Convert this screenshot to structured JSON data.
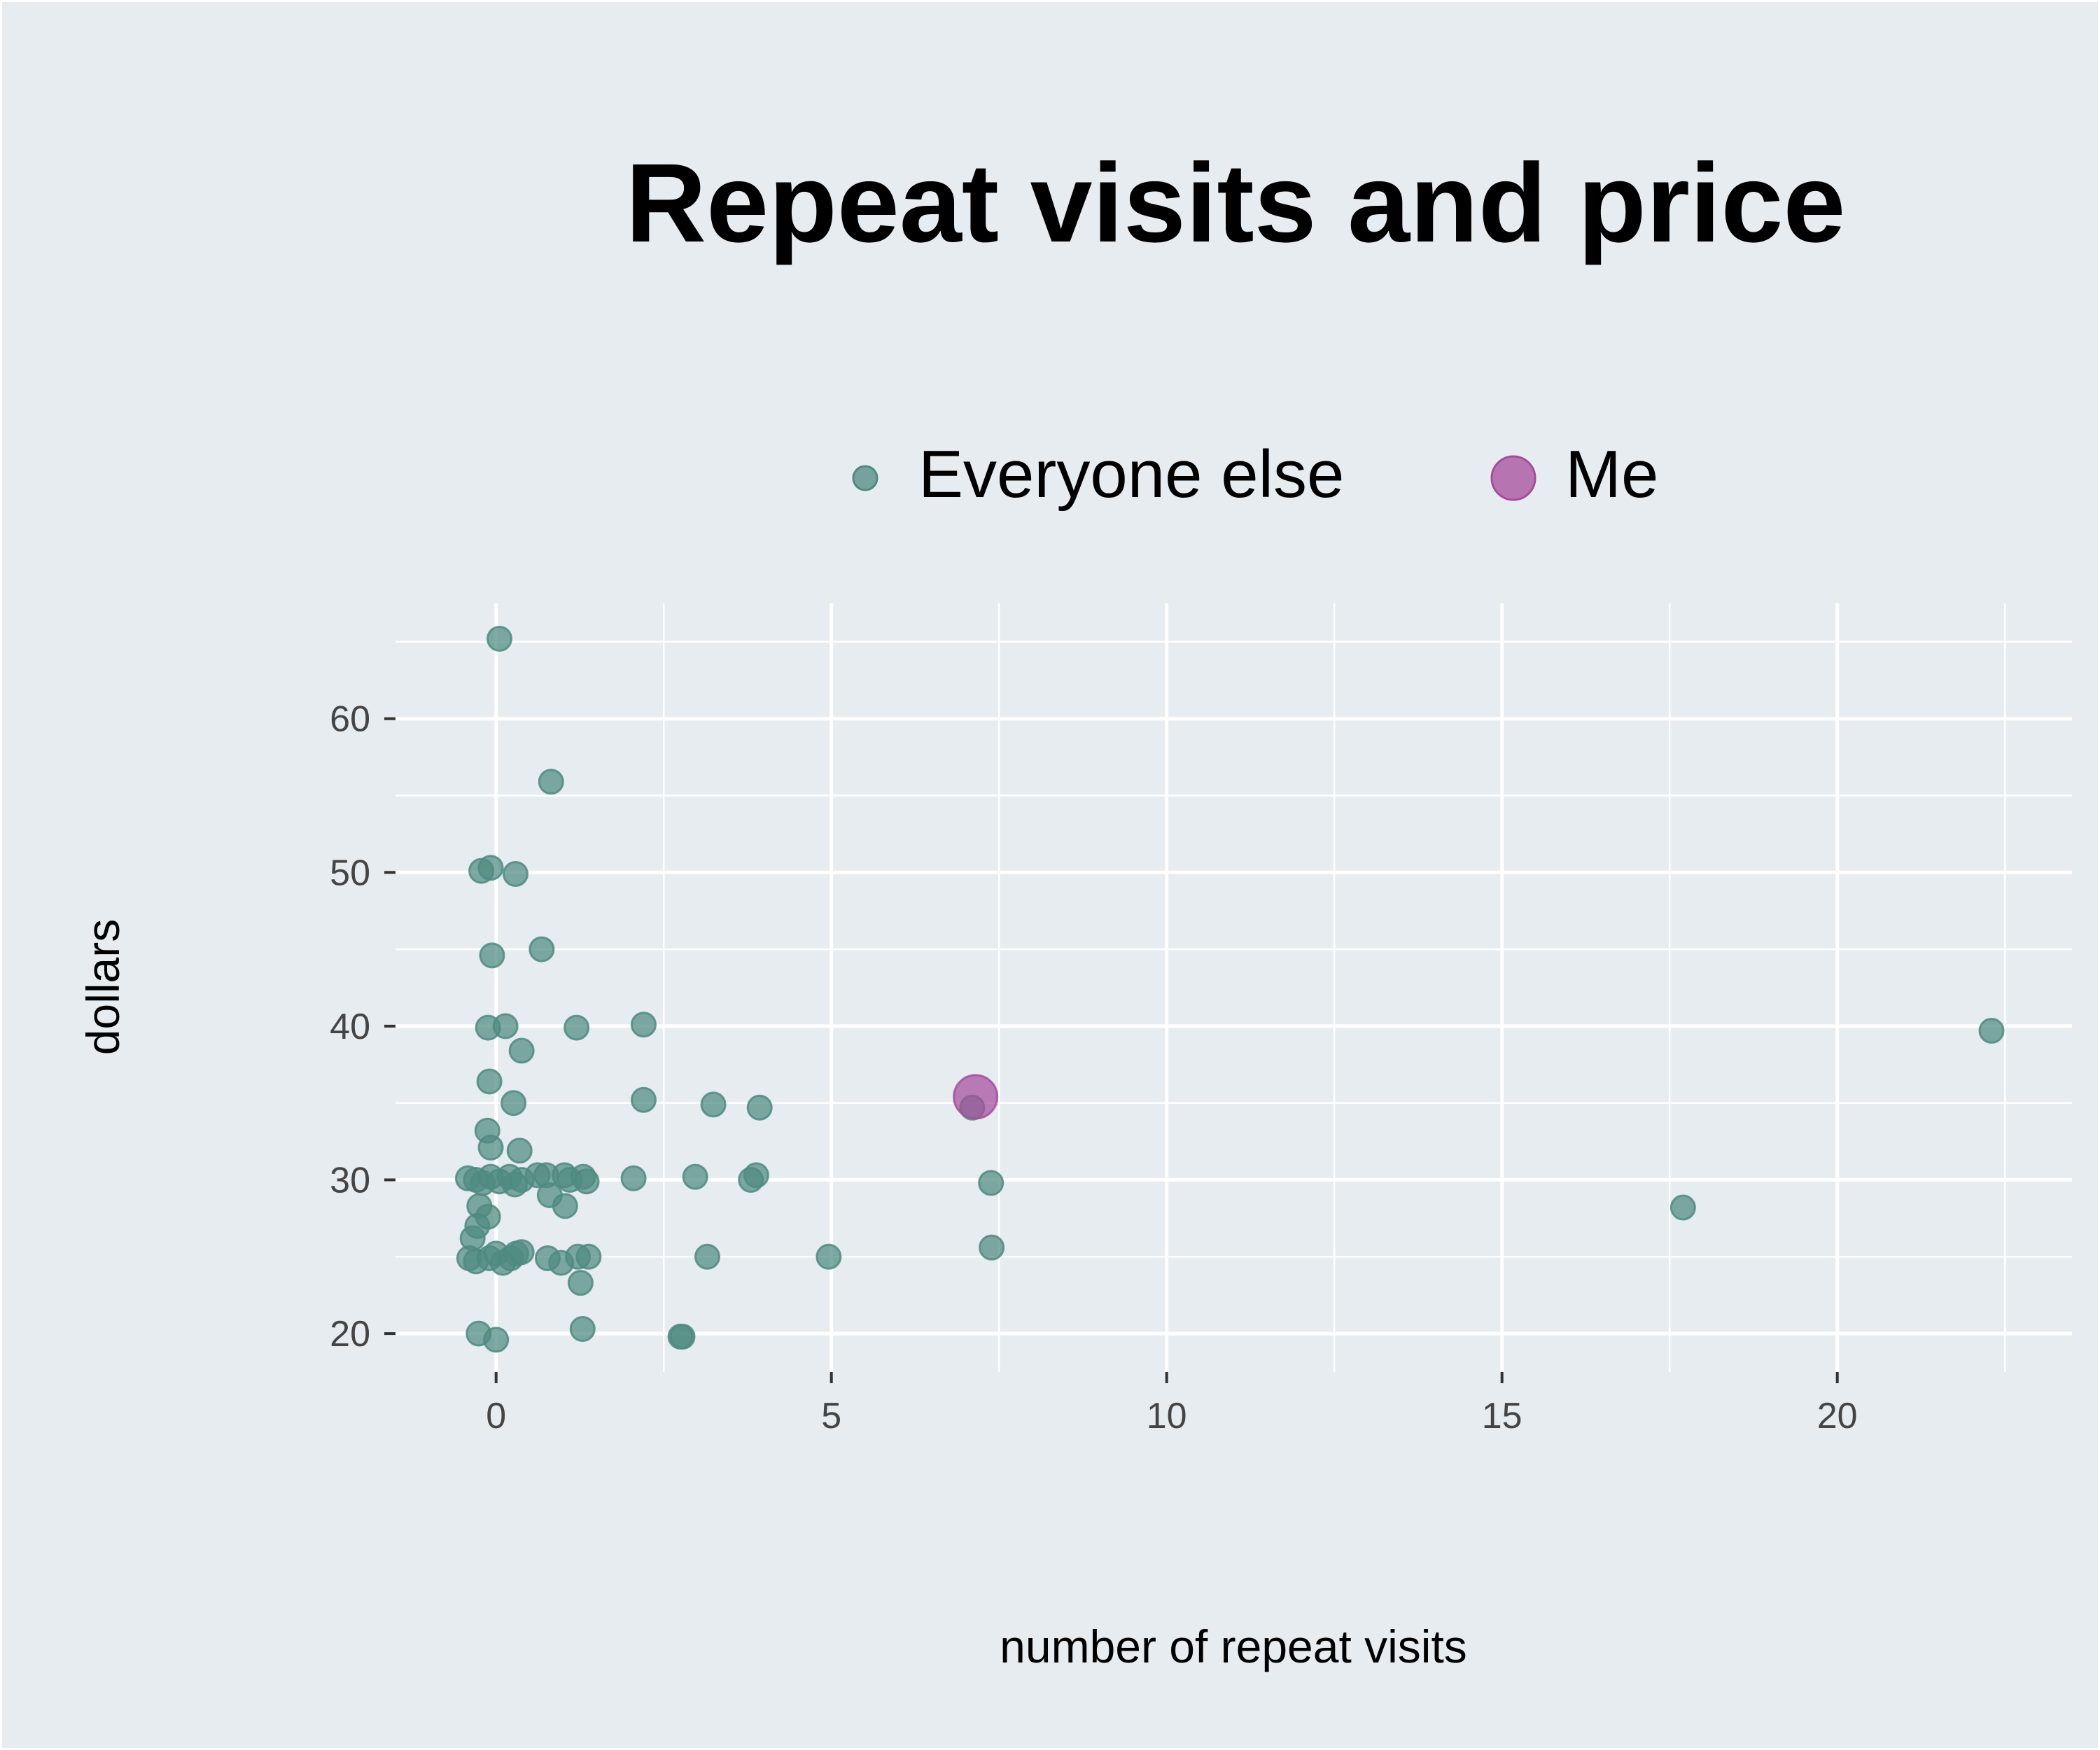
{
  "chart_data": {
    "type": "scatter",
    "title": "Repeat visits and price",
    "xlabel": "number of repeat visits",
    "ylabel": "dollars",
    "xlim": [
      -1.5,
      23.5
    ],
    "ylim": [
      17.5,
      67.5
    ],
    "x_ticks": [
      0,
      5,
      10,
      15,
      20
    ],
    "y_ticks": [
      20,
      30,
      40,
      50,
      60
    ],
    "x_tick_labels": [
      "0",
      "5",
      "10",
      "15",
      "20"
    ],
    "y_tick_labels": [
      "20",
      "30",
      "40",
      "50",
      "60"
    ],
    "grid": true,
    "legend_position": "top",
    "colors": {
      "background": "#e7ecf0",
      "grid": "#ffffff",
      "everyone": "#4f8a80",
      "me": "#a54d9c"
    },
    "legend": [
      {
        "label": "Everyone else",
        "series": "everyone"
      },
      {
        "label": "Me",
        "series": "me"
      }
    ],
    "series": [
      {
        "name": "Everyone else",
        "key": "everyone",
        "points": [
          [
            0.05,
            65.2
          ],
          [
            0.82,
            55.9
          ],
          [
            -0.22,
            50.1
          ],
          [
            -0.08,
            50.3
          ],
          [
            0.29,
            49.9
          ],
          [
            0.68,
            45.0
          ],
          [
            -0.06,
            44.6
          ],
          [
            -0.12,
            39.9
          ],
          [
            0.14,
            40.0
          ],
          [
            1.2,
            39.9
          ],
          [
            2.2,
            40.1
          ],
          [
            0.38,
            38.4
          ],
          [
            22.3,
            39.7
          ],
          [
            -0.1,
            36.4
          ],
          [
            0.26,
            35.0
          ],
          [
            2.2,
            35.2
          ],
          [
            3.24,
            34.9
          ],
          [
            3.93,
            34.7
          ],
          [
            7.1,
            34.7
          ],
          [
            -0.13,
            33.2
          ],
          [
            -0.08,
            32.1
          ],
          [
            0.35,
            31.9
          ],
          [
            -0.42,
            30.1
          ],
          [
            -0.3,
            30.0
          ],
          [
            -0.2,
            29.8
          ],
          [
            -0.08,
            30.2
          ],
          [
            0.05,
            29.9
          ],
          [
            0.2,
            30.2
          ],
          [
            0.28,
            29.7
          ],
          [
            0.38,
            30.0
          ],
          [
            0.62,
            30.3
          ],
          [
            0.75,
            30.3
          ],
          [
            1.02,
            30.3
          ],
          [
            1.1,
            30.0
          ],
          [
            1.3,
            30.2
          ],
          [
            1.35,
            29.9
          ],
          [
            2.05,
            30.1
          ],
          [
            2.97,
            30.2
          ],
          [
            3.8,
            30.0
          ],
          [
            3.88,
            30.3
          ],
          [
            7.38,
            29.8
          ],
          [
            0.8,
            29.0
          ],
          [
            1.03,
            28.3
          ],
          [
            -0.25,
            28.3
          ],
          [
            -0.12,
            27.6
          ],
          [
            -0.28,
            27.0
          ],
          [
            -0.35,
            26.2
          ],
          [
            17.7,
            28.2
          ],
          [
            -0.4,
            24.9
          ],
          [
            -0.3,
            24.7
          ],
          [
            -0.1,
            24.9
          ],
          [
            0.0,
            25.2
          ],
          [
            0.1,
            24.6
          ],
          [
            0.22,
            24.9
          ],
          [
            0.3,
            25.2
          ],
          [
            0.38,
            25.3
          ],
          [
            0.77,
            24.9
          ],
          [
            0.97,
            24.6
          ],
          [
            1.22,
            25.0
          ],
          [
            1.38,
            25.0
          ],
          [
            3.15,
            25.0
          ],
          [
            4.96,
            25.0
          ],
          [
            7.39,
            25.6
          ],
          [
            1.26,
            23.3
          ],
          [
            -0.26,
            20.0
          ],
          [
            0.0,
            19.6
          ],
          [
            1.29,
            20.3
          ],
          [
            2.75,
            19.8
          ],
          [
            2.78,
            19.8
          ]
        ]
      },
      {
        "name": "Me",
        "key": "me",
        "points": [
          [
            7.15,
            35.4
          ]
        ]
      }
    ]
  }
}
